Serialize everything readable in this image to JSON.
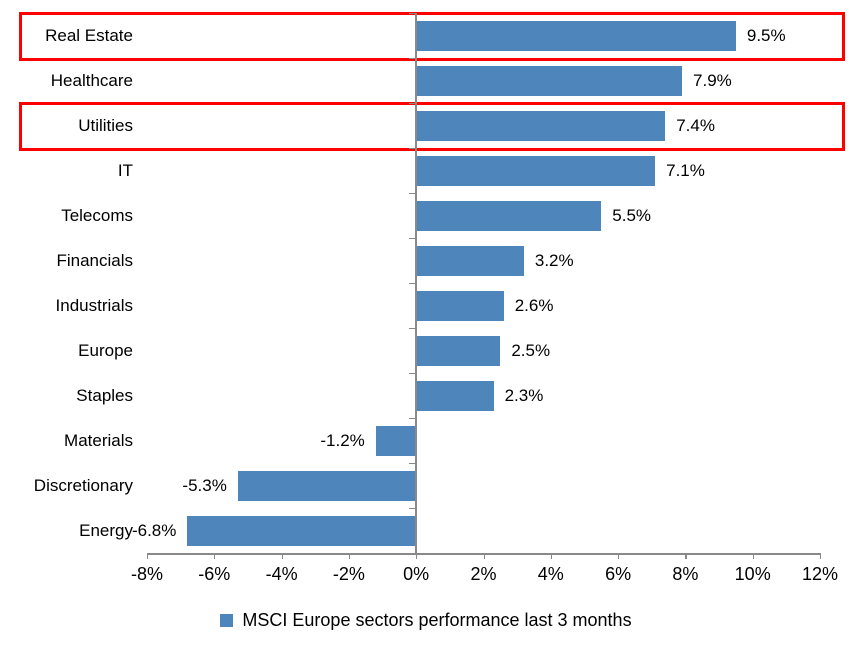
{
  "chart_data": {
    "type": "bar",
    "orientation": "horizontal",
    "categories": [
      "Real Estate",
      "Healthcare",
      "Utilities",
      "IT",
      "Telecoms",
      "Financials",
      "Industrials",
      "Europe",
      "Staples",
      "Materials",
      "Discretionary",
      "Energy"
    ],
    "values": [
      9.5,
      7.9,
      7.4,
      7.1,
      5.5,
      3.2,
      2.6,
      2.5,
      2.3,
      -1.2,
      -5.3,
      -6.8
    ],
    "data_labels": [
      "9.5%",
      "7.9%",
      "7.4%",
      "7.1%",
      "5.5%",
      "3.2%",
      "2.6%",
      "2.5%",
      "2.3%",
      "-1.2%",
      "-5.3%",
      "-6.8%"
    ],
    "x_axis": {
      "min": -8,
      "max": 12,
      "step": 2,
      "tick_labels": [
        "-8%",
        "-6%",
        "-4%",
        "-2%",
        "0%",
        "2%",
        "4%",
        "6%",
        "8%",
        "10%",
        "12%"
      ]
    },
    "legend": {
      "label": "MSCI Europe sectors performance last 3 months",
      "position": "bottom"
    },
    "bar_color": "#4E86BC",
    "axis_color": "#898989",
    "highlight_color": "#FF0000",
    "highlighted_categories": [
      "Real Estate",
      "Utilities"
    ],
    "grid": false
  }
}
